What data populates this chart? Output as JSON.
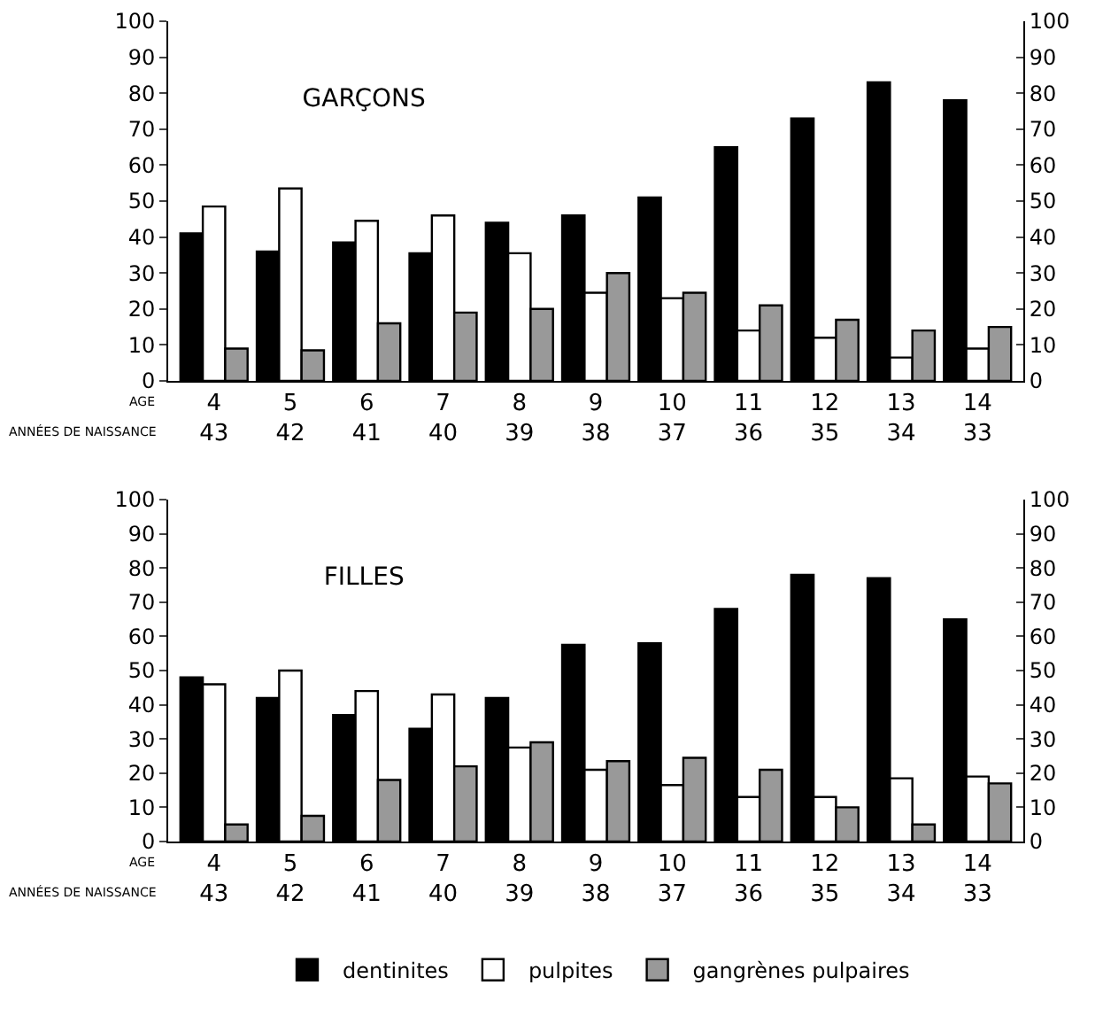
{
  "chart_data": [
    {
      "type": "bar",
      "title": "GARÇONS",
      "categories": [
        "4\n43",
        "5\n42",
        "6\n41",
        "7\n40",
        "8\n39",
        "9\n38",
        "10\n37",
        "11\n36",
        "12\n35",
        "13\n34",
        "14\n33"
      ],
      "series": [
        {
          "color": "#000000",
          "values": [
            41,
            36,
            38.5,
            35.5,
            44,
            46,
            51,
            65,
            73,
            83,
            78
          ]
        },
        {
          "color": "#ffffff",
          "values": [
            48.5,
            53.5,
            44.5,
            46,
            35.5,
            24.5,
            23,
            14,
            12,
            6.5,
            9
          ]
        },
        {
          "color": "#999999",
          "values": [
            9,
            8.5,
            16,
            19,
            20,
            30,
            24.5,
            21,
            17,
            14,
            15
          ]
        }
      ],
      "ylim": [
        0,
        100
      ],
      "yticks": [
        0,
        10,
        20,
        30,
        40,
        50,
        60,
        70,
        80,
        90,
        100
      ],
      "y2lim": [
        0,
        100
      ],
      "y2ticks": [
        0,
        10,
        20,
        30,
        40,
        50,
        60,
        70,
        80,
        90,
        100
      ],
      "annotations": [
        "AGE",
        "ANNÉES DE NAISSANCE"
      ],
      "grid": false,
      "legend": false
    },
    {
      "type": "bar",
      "title": "FILLES",
      "categories": [
        "4\n43",
        "5\n42",
        "6\n41",
        "7\n40",
        "8\n39",
        "9\n38",
        "10\n37",
        "11\n36",
        "12\n35",
        "13\n34",
        "14\n33"
      ],
      "series": [
        {
          "name": "dentinites",
          "color": "#000000",
          "values": [
            48,
            42,
            37,
            33,
            42,
            57.5,
            58,
            68,
            78,
            77,
            65
          ]
        },
        {
          "name": "pulpites",
          "color": "#ffffff",
          "values": [
            46,
            50,
            44,
            43,
            27.5,
            21,
            16.5,
            13,
            13,
            18.5,
            19
          ]
        },
        {
          "name": "gangrènes pulpaires",
          "color": "#999999",
          "values": [
            5,
            7.5,
            18,
            22,
            29,
            23.5,
            24.5,
            21,
            10,
            5,
            17
          ]
        }
      ],
      "ylim": [
        0,
        100
      ],
      "yticks": [
        0,
        10,
        20,
        30,
        40,
        50,
        60,
        70,
        80,
        90,
        100
      ],
      "y2lim": [
        0,
        100
      ],
      "y2ticks": [
        0,
        10,
        20,
        30,
        40,
        50,
        60,
        70,
        80,
        90,
        100
      ],
      "annotations": [
        "AGE",
        "ANNÉES DE NAISSANCE"
      ],
      "grid": false,
      "legend": "bottom"
    }
  ]
}
